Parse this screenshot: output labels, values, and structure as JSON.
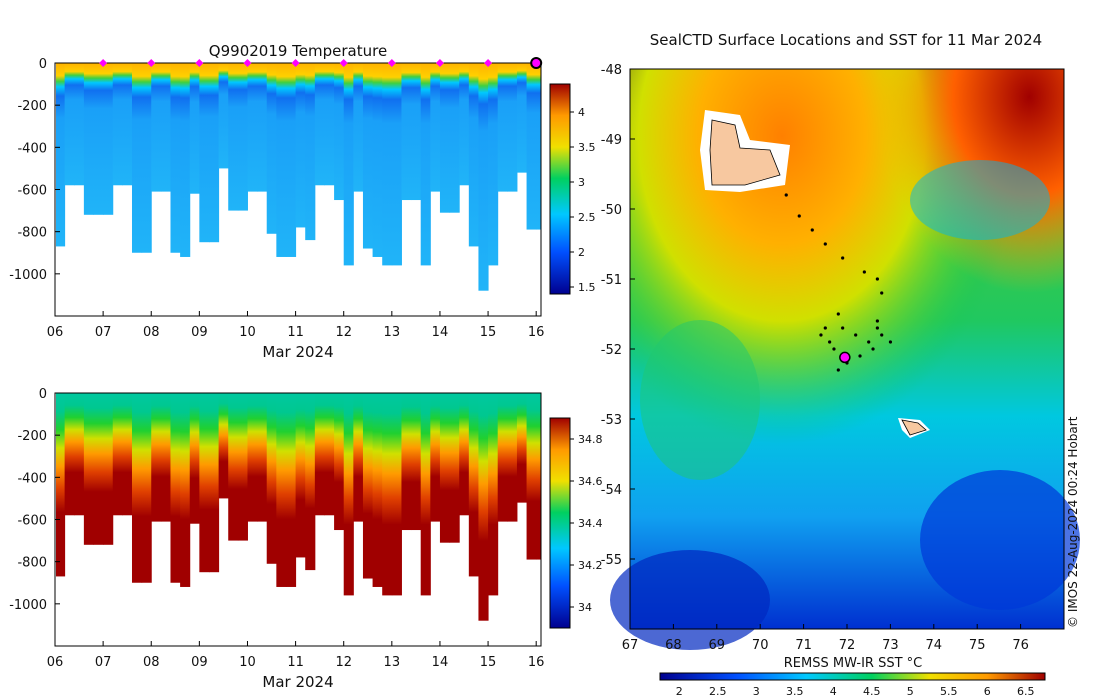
{
  "chart_data": [
    {
      "type": "heatmap",
      "title": "Q9902019  Temperature",
      "xlabel": "Mar 2024",
      "x_ticks": [
        "06",
        "07",
        "08",
        "09",
        "10",
        "11",
        "12",
        "13",
        "14",
        "15",
        "16"
      ],
      "x_range": [
        6,
        16.1
      ],
      "y_ticks": [
        0,
        -200,
        -400,
        -600,
        -800,
        -1000
      ],
      "y_range": [
        -1200,
        0
      ],
      "colorbar_ticks": [
        1.5,
        2,
        2.5,
        3,
        3.5,
        4
      ],
      "colorbar_range": [
        1.4,
        4.4
      ],
      "surface_markers_day": [
        7,
        8,
        9,
        10,
        11,
        12,
        13,
        14,
        15
      ],
      "latest_marker_day": 16,
      "profile_days": [
        6.0,
        6.2,
        6.4,
        6.6,
        6.8,
        7.0,
        7.2,
        7.4,
        7.6,
        7.8,
        8.0,
        8.2,
        8.4,
        8.6,
        8.8,
        9.0,
        9.2,
        9.4,
        9.6,
        9.8,
        10.0,
        10.2,
        10.4,
        10.6,
        10.8,
        11.0,
        11.2,
        11.4,
        11.6,
        11.8,
        12.0,
        12.2,
        12.4,
        12.6,
        12.8,
        13.0,
        13.2,
        13.4,
        13.6,
        13.8,
        14.0,
        14.2,
        14.4,
        14.6,
        14.8,
        15.0,
        15.2,
        15.4,
        15.6,
        15.8,
        16.0
      ],
      "profile_max_depth": [
        -870,
        -580,
        -580,
        -720,
        -720,
        -720,
        -580,
        -580,
        -900,
        -900,
        -610,
        -610,
        -900,
        -920,
        -620,
        -850,
        -850,
        -500,
        -700,
        -700,
        -610,
        -610,
        -810,
        -920,
        -920,
        -780,
        -840,
        -580,
        -580,
        -650,
        -960,
        -610,
        -880,
        -920,
        -960,
        -960,
        -650,
        -650,
        -960,
        -610,
        -710,
        -710,
        -580,
        -870,
        -1080,
        -960,
        -610,
        -610,
        -520,
        -790,
        -790
      ],
      "temperature_layers": [
        {
          "depth": 0,
          "value": 3.9
        },
        {
          "depth": -100,
          "value": 3.6
        },
        {
          "depth": -140,
          "value": 2.8
        },
        {
          "depth": -200,
          "value": 2.1
        },
        {
          "depth": -400,
          "value": 2.2
        },
        {
          "depth": -1200,
          "value": 2.25
        }
      ]
    },
    {
      "type": "heatmap",
      "title": "",
      "xlabel": "Mar 2024",
      "x_ticks": [
        "06",
        "07",
        "08",
        "09",
        "10",
        "11",
        "12",
        "13",
        "14",
        "15",
        "16"
      ],
      "x_range": [
        6,
        16.1
      ],
      "y_ticks": [
        0,
        -200,
        -400,
        -600,
        -800,
        -1000
      ],
      "y_range": [
        -1200,
        0
      ],
      "colorbar_ticks": [
        34,
        34.2,
        34.4,
        34.6,
        34.8
      ],
      "colorbar_range": [
        33.9,
        34.9
      ],
      "salinity_layers": [
        {
          "depth": 0,
          "value": 34.15
        },
        {
          "depth": -200,
          "value": 34.3
        },
        {
          "depth": -330,
          "value": 34.5
        },
        {
          "depth": -500,
          "value": 34.63
        },
        {
          "depth": -700,
          "value": 34.78
        },
        {
          "depth": -1200,
          "value": 34.88
        }
      ]
    },
    {
      "type": "heatmap",
      "title": "SealCTD Surface Locations and SST for 11 Mar 2024",
      "colorbar_label": "REMSS MW-IR SST °C",
      "x_ticks": [
        "67",
        "68",
        "69",
        "70",
        "71",
        "72",
        "73",
        "74",
        "75",
        "76"
      ],
      "x_range": [
        67,
        77
      ],
      "y_ticks": [
        "-48",
        "-49",
        "-50",
        "-51",
        "-52",
        "-53",
        "-54",
        "-55"
      ],
      "y_range": [
        -56,
        -48
      ],
      "colorbar_ticks": [
        "2",
        "2.5",
        "3",
        "3.5",
        "4",
        "4.5",
        "5",
        "5.5",
        "6",
        "6.5"
      ],
      "colorbar_range": [
        1.75,
        6.75
      ],
      "track_points": [
        [
          70.6,
          -49.8
        ],
        [
          70.9,
          -50.1
        ],
        [
          71.2,
          -50.3
        ],
        [
          71.5,
          -50.5
        ],
        [
          71.9,
          -50.7
        ],
        [
          72.4,
          -50.9
        ],
        [
          72.7,
          -51.0
        ],
        [
          72.8,
          -51.2
        ],
        [
          72.7,
          -51.6
        ],
        [
          72.8,
          -51.8
        ],
        [
          73.0,
          -51.9
        ],
        [
          72.6,
          -52.0
        ],
        [
          72.3,
          -52.1
        ],
        [
          72.0,
          -52.2
        ],
        [
          71.8,
          -52.3
        ],
        [
          71.7,
          -52.0
        ],
        [
          71.9,
          -51.7
        ],
        [
          71.8,
          -51.5
        ],
        [
          71.5,
          -51.7
        ],
        [
          71.4,
          -51.8
        ],
        [
          71.6,
          -51.9
        ],
        [
          72.2,
          -51.8
        ],
        [
          72.5,
          -51.9
        ],
        [
          72.7,
          -51.7
        ]
      ],
      "current_position": [
        71.95,
        -52.12
      ],
      "islands": [
        "Kerguelen Islands",
        "Heard Island"
      ]
    }
  ],
  "credit": "© IMOS 22-Aug-2024 00:24 Hobart"
}
